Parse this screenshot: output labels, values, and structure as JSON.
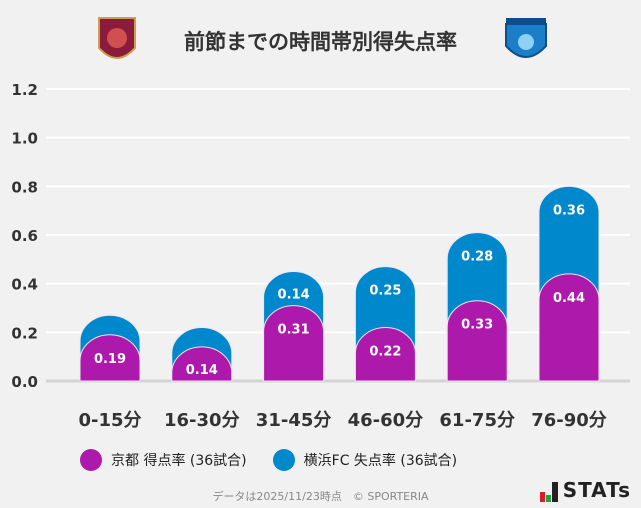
{
  "title": "前節までの時間帯別得失点率",
  "logos": {
    "home": "KYOTO SANGA",
    "away": "YOKOHAMA FC"
  },
  "chart_data": {
    "type": "bar",
    "stacked": true,
    "categories": [
      "0-15分",
      "16-30分",
      "31-45分",
      "46-60分",
      "61-75分",
      "76-90分"
    ],
    "series": [
      {
        "name": "京都 得点率 (36試合)",
        "color": "#ad1aab",
        "values": [
          0.19,
          0.14,
          0.31,
          0.22,
          0.33,
          0.44
        ],
        "labels": [
          "0.19",
          "0.14",
          "0.31",
          "0.22",
          "0.33",
          "0.44"
        ]
      },
      {
        "name": "横浜FC 失点率 (36試合)",
        "color": "#0088cc",
        "values": [
          0.08,
          0.08,
          0.14,
          0.25,
          0.28,
          0.36
        ],
        "labels": [
          "",
          "",
          "0.14",
          "0.25",
          "0.28",
          "0.36"
        ]
      }
    ],
    "yticks": [
      "0.0",
      "0.2",
      "0.4",
      "0.6",
      "0.8",
      "1.0",
      "1.2"
    ],
    "ylim": [
      0,
      1.2
    ],
    "grid": true,
    "legend": "bottom"
  },
  "footer": "データは2025/11/23時点　© SPORTERIA",
  "brand": "STATs"
}
